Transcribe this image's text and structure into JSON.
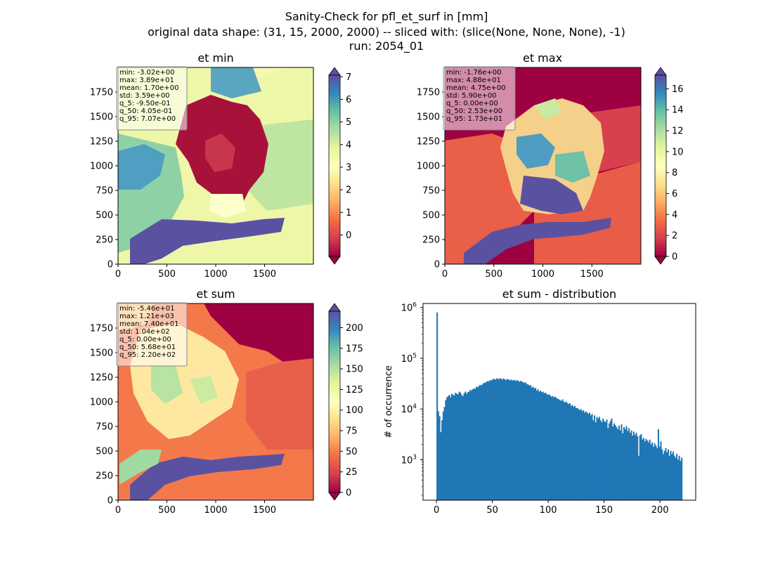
{
  "figure": {
    "suptitle_lines": [
      "Sanity-Check for pfl_et_surf in [mm]",
      "original data shape: (31, 15, 2000, 2000) -- sliced with: (slice(None, None, None), -1)",
      "run: 2054_01"
    ]
  },
  "colors": {
    "bar": "#1f77b4",
    "stats_box_bg": "#ffffff",
    "cmap_Spectral": [
      "#9e0142",
      "#d53e4f",
      "#f46d43",
      "#fdae61",
      "#fee08b",
      "#ffffbf",
      "#e6f598",
      "#abdda4",
      "#66c2a5",
      "#3288bd",
      "#5e4fa2"
    ]
  },
  "chart_data": [
    {
      "type": "heatmap",
      "title": "et min",
      "colormap": "Spectral",
      "colorbar_extend": "both",
      "x_ticks": [
        0,
        500,
        1000,
        1500
      ],
      "y_ticks": [
        0,
        250,
        500,
        750,
        1000,
        1250,
        1500,
        1750
      ],
      "x_range": [
        0,
        2000
      ],
      "y_range": [
        0,
        2000
      ],
      "color_range": [
        -0.95,
        7.07
      ],
      "colorbar_ticks": [
        0,
        1,
        2,
        3,
        4,
        5,
        6,
        7
      ],
      "stats": [
        "min: -3.02e+00",
        "max: 3.89e+01",
        "mean: 1.70e+00",
        "std: 3.59e+00",
        "q_5: -9.50e-01",
        "q_50: 4.05e-01",
        "q_95: 7.07e+00"
      ]
    },
    {
      "type": "heatmap",
      "title": "et max",
      "colormap": "Spectral",
      "colorbar_extend": "both",
      "x_ticks": [
        0,
        500,
        1000,
        1500
      ],
      "y_ticks": [
        0,
        250,
        500,
        750,
        1000,
        1250,
        1500,
        1750
      ],
      "x_range": [
        0,
        2000
      ],
      "y_range": [
        0,
        2000
      ],
      "color_range": [
        0,
        17.3
      ],
      "colorbar_ticks": [
        0,
        2,
        4,
        6,
        8,
        10,
        12,
        14,
        16
      ],
      "stats": [
        "min: -1.76e+00",
        "max: 4.88e+01",
        "mean: 4.75e+00",
        "std: 5.90e+00",
        "q_5: 0.00e+00",
        "q_50: 2.53e+00",
        "q_95: 1.73e+01"
      ]
    },
    {
      "type": "heatmap",
      "title": "et sum",
      "colormap": "Spectral",
      "colorbar_extend": "both",
      "x_ticks": [
        0,
        500,
        1000,
        1500
      ],
      "y_ticks": [
        0,
        250,
        500,
        750,
        1000,
        1250,
        1500,
        1750
      ],
      "x_range": [
        0,
        2000
      ],
      "y_range": [
        0,
        2000
      ],
      "color_range": [
        0,
        220
      ],
      "colorbar_ticks": [
        0,
        25,
        50,
        75,
        100,
        125,
        150,
        175,
        200
      ],
      "stats": [
        "min: -5.46e+01",
        "max: 1.21e+03",
        "mean: 7.40e+01",
        "std: 1.04e+02",
        "q_5: 0.00e+00",
        "q_50: 5.68e+01",
        "q_95: 2.20e+02"
      ]
    },
    {
      "type": "bar",
      "title": "et sum - distribution",
      "ylabel": "# of occurrence",
      "xlabel": "",
      "yscale": "log",
      "x_range": [
        -12,
        232
      ],
      "y_range": [
        160,
        1200000
      ],
      "x_ticks": [
        0,
        50,
        100,
        150,
        200
      ],
      "y_ticks": [
        {
          "value": 1000,
          "base": "10",
          "exp": "3"
        },
        {
          "value": 10000,
          "base": "10",
          "exp": "4"
        },
        {
          "value": 100000,
          "base": "10",
          "exp": "5"
        },
        {
          "value": 1000000,
          "base": "10",
          "exp": "6"
        }
      ],
      "bin_width": 1.1,
      "series_x": [
        0,
        1.1,
        2.2,
        3.3,
        4.4,
        5.5,
        6.6,
        7.7,
        8.8,
        9.9,
        11,
        12.1,
        13.2,
        14.3,
        15.4,
        16.5,
        17.6,
        18.7,
        19.8,
        20.9,
        22,
        23.1,
        24.2,
        25.3,
        26.4,
        27.5,
        28.6,
        29.7,
        30.8,
        31.9,
        33,
        34.1,
        35.2,
        36.3,
        37.4,
        38.5,
        39.6,
        40.7,
        41.8,
        42.9,
        44,
        45.1,
        46.2,
        47.3,
        48.4,
        49.5,
        50.6,
        51.7,
        52.8,
        53.9,
        55,
        56.1,
        57.2,
        58.3,
        59.4,
        60.5,
        61.6,
        62.7,
        63.8,
        64.9,
        66,
        67.1,
        68.2,
        69.3,
        70.4,
        71.5,
        72.6,
        73.7,
        74.8,
        75.9,
        77,
        78.1,
        79.2,
        80.3,
        81.4,
        82.5,
        83.6,
        84.7,
        85.8,
        86.9,
        88,
        89.1,
        90.2,
        91.3,
        92.4,
        93.5,
        94.6,
        95.7,
        96.8,
        97.9,
        99,
        100.1,
        101.2,
        102.3,
        103.4,
        104.5,
        105.6,
        106.7,
        107.8,
        108.9,
        110,
        111.1,
        112.2,
        113.3,
        114.4,
        115.5,
        116.6,
        117.7,
        118.8,
        119.9,
        121,
        122.1,
        123.2,
        124.3,
        125.4,
        126.5,
        127.6,
        128.7,
        129.8,
        130.9,
        132,
        133.1,
        134.2,
        135.3,
        136.4,
        137.5,
        138.6,
        139.7,
        140.8,
        141.9,
        143,
        144.1,
        145.2,
        146.3,
        147.4,
        148.5,
        149.6,
        150.7,
        151.8,
        152.9,
        154,
        155.1,
        156.2,
        157.3,
        158.4,
        159.5,
        160.6,
        161.7,
        162.8,
        163.9,
        165,
        166.1,
        167.2,
        168.3,
        169.4,
        170.5,
        171.6,
        172.7,
        173.8,
        174.9,
        176,
        177.1,
        178.2,
        179.3,
        180.4,
        181.5,
        182.6,
        183.7,
        184.8,
        185.9,
        187,
        188.1,
        189.2,
        190.3,
        191.4,
        192.5,
        193.6,
        194.7,
        195.8,
        196.9,
        198,
        199.1,
        200.2,
        201.3,
        202.4,
        203.5,
        204.6,
        205.7,
        206.8,
        207.9,
        209,
        210.1,
        211.2,
        212.3,
        213.4,
        214.5,
        215.6,
        216.7,
        217.8,
        218.9
      ],
      "series_y": [
        800000,
        9000,
        7200,
        3500,
        6000,
        9000,
        11000,
        15000,
        17000,
        18000,
        19000,
        17000,
        20000,
        19000,
        18500,
        21000,
        20000,
        19500,
        22000,
        21000,
        19000,
        18000,
        20500,
        22000,
        20000,
        21500,
        22000,
        24000,
        23000,
        24500,
        25500,
        25000,
        27500,
        27000,
        28500,
        30000,
        29000,
        31000,
        32500,
        33000,
        34000,
        35500,
        35000,
        37000,
        36500,
        38000,
        39500,
        38000,
        39000,
        40500,
        38000,
        40500,
        39500,
        38000,
        40000,
        38500,
        37000,
        39000,
        38500,
        36500,
        38000,
        37000,
        36500,
        37500,
        35500,
        37000,
        36000,
        34500,
        36000,
        34500,
        34000,
        32500,
        33500,
        31000,
        30500,
        29000,
        29500,
        26500,
        27500,
        25500,
        26000,
        23000,
        24500,
        22000,
        23000,
        21500,
        22000,
        20500,
        21000,
        20000,
        19000,
        19500,
        18500,
        17500,
        18000,
        17000,
        17500,
        16500,
        16000,
        15500,
        15000,
        14500,
        15500,
        14000,
        13500,
        14000,
        13000,
        12500,
        13000,
        11500,
        12000,
        11000,
        11500,
        10500,
        10500,
        10000,
        9500,
        10000,
        9000,
        9500,
        8500,
        9000,
        8500,
        8000,
        8500,
        7500,
        8000,
        6000,
        7500,
        5500,
        7000,
        6500,
        7000,
        6000,
        5500,
        6500,
        5800,
        5500,
        6200,
        4200,
        5200,
        5800,
        6500,
        4500,
        5200,
        4800,
        4400,
        4000,
        4700,
        3800,
        5000,
        3300,
        4400,
        4000,
        4600,
        3700,
        4200,
        3400,
        3800,
        3000,
        3600,
        3100,
        3400,
        2900,
        1200,
        3000,
        3200,
        2500,
        2700,
        2300,
        2600,
        2400,
        2200,
        2500,
        2000,
        2200,
        1800,
        2100,
        1900,
        1700,
        4000,
        1800,
        2300,
        1600,
        1300,
        1500,
        1700,
        1400,
        1600,
        1200,
        1500,
        1300,
        1450,
        1200,
        1100,
        1300,
        1000,
        1200,
        950,
        1100
      ]
    }
  ]
}
